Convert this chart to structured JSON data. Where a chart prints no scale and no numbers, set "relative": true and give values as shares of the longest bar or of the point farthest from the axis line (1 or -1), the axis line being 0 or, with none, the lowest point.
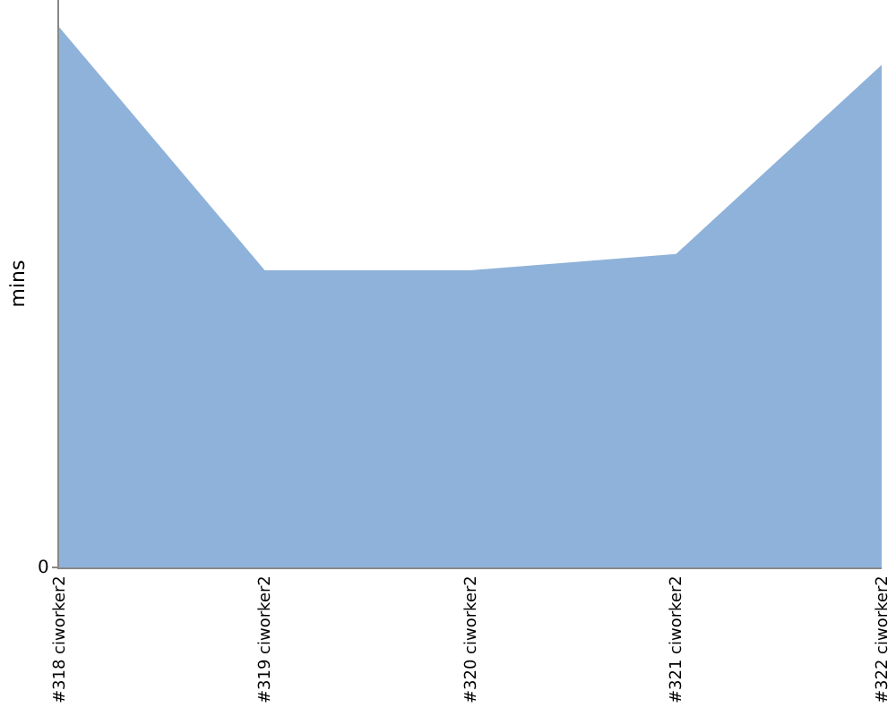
{
  "chart_data": {
    "type": "area",
    "ylabel": "mins",
    "categories": [
      "#318 ciworker2",
      "#319 ciworker2",
      "#320 ciworker2",
      "#321 ciworker2",
      "#322 ciworker2"
    ],
    "values": [
      1,
      0.55,
      0.55,
      0.58,
      0.93
    ],
    "color": "#8fb2da",
    "relative": true,
    "grid": false,
    "annotations": [
      "0"
    ]
  }
}
